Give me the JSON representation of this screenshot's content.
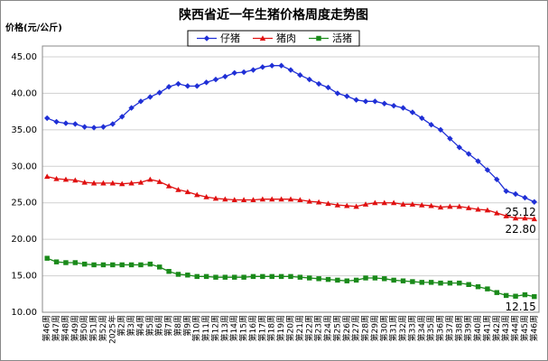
{
  "chart_data": {
    "type": "line",
    "title": "陕西省近一年生猪价格周度走势图",
    "y_label": "价格(元/公斤)",
    "categories": [
      "第46周",
      "第47周",
      "第48周",
      "第49周",
      "第50周",
      "第51周",
      "第52周",
      "2025年",
      "第2周",
      "第3周",
      "第4周",
      "第5周",
      "第6周",
      "第7周",
      "第8周",
      "第9周",
      "第10周",
      "第11周",
      "第12周",
      "第13周",
      "第14周",
      "第15周",
      "第16周",
      "第17周",
      "第18周",
      "第19周",
      "第20周",
      "第21周",
      "第22周",
      "第23周",
      "第24周",
      "第25周",
      "第26周",
      "第27周",
      "第28周",
      "第29周",
      "第30周",
      "第31周",
      "第32周",
      "第33周",
      "第34周",
      "第35周",
      "第36周",
      "第37周",
      "第38周",
      "第39周",
      "第40周",
      "第41周",
      "第42周",
      "第43周",
      "第44周",
      "第45周",
      "第46周"
    ],
    "series": [
      {
        "name": "仔猪",
        "color": "#1f2fd6",
        "marker": "diamond",
        "values": [
          36.6,
          36.1,
          35.9,
          35.8,
          35.4,
          35.3,
          35.4,
          35.8,
          36.8,
          38.0,
          38.9,
          39.5,
          40.1,
          40.9,
          41.3,
          41.0,
          41.0,
          41.5,
          41.9,
          42.3,
          42.8,
          42.9,
          43.2,
          43.6,
          43.8,
          43.8,
          43.2,
          42.5,
          41.9,
          41.3,
          40.8,
          40.0,
          39.6,
          39.1,
          38.9,
          38.9,
          38.6,
          38.3,
          38.0,
          37.4,
          36.6,
          35.7,
          35.0,
          33.8,
          32.6,
          31.7,
          30.7,
          29.5,
          28.2,
          26.6,
          26.2,
          25.7,
          25.12
        ],
        "value_labels": [
          null,
          null,
          null,
          null,
          null,
          null,
          null,
          null,
          null,
          null,
          null,
          null,
          null,
          null,
          null,
          null,
          null,
          null,
          null,
          null,
          null,
          null,
          null,
          null,
          null,
          null,
          null,
          null,
          null,
          null,
          null,
          null,
          null,
          null,
          null,
          null,
          null,
          null,
          null,
          null,
          null,
          null,
          null,
          null,
          null,
          null,
          null,
          null,
          null,
          null,
          null,
          null,
          "25.12"
        ]
      },
      {
        "name": "猪肉",
        "color": "#e01010",
        "marker": "triangle",
        "values": [
          28.6,
          28.3,
          28.2,
          28.1,
          27.8,
          27.7,
          27.7,
          27.7,
          27.6,
          27.7,
          27.8,
          28.2,
          27.9,
          27.3,
          26.8,
          26.5,
          26.1,
          25.8,
          25.6,
          25.5,
          25.4,
          25.4,
          25.4,
          25.5,
          25.5,
          25.5,
          25.5,
          25.4,
          25.2,
          25.1,
          24.9,
          24.7,
          24.6,
          24.5,
          24.8,
          25.0,
          25.0,
          25.0,
          24.8,
          24.8,
          24.7,
          24.6,
          24.4,
          24.5,
          24.5,
          24.3,
          24.1,
          24.0,
          23.6,
          23.2,
          22.9,
          22.9,
          22.8
        ],
        "value_labels": [
          null,
          null,
          null,
          null,
          null,
          null,
          null,
          null,
          null,
          null,
          null,
          null,
          null,
          null,
          null,
          null,
          null,
          null,
          null,
          null,
          null,
          null,
          null,
          null,
          null,
          null,
          null,
          null,
          null,
          null,
          null,
          null,
          null,
          null,
          null,
          null,
          null,
          null,
          null,
          null,
          null,
          null,
          null,
          null,
          null,
          null,
          null,
          null,
          null,
          null,
          null,
          null,
          "22.80"
        ]
      },
      {
        "name": "活猪",
        "color": "#1a8a1a",
        "marker": "square",
        "values": [
          17.4,
          16.9,
          16.8,
          16.8,
          16.6,
          16.5,
          16.5,
          16.5,
          16.5,
          16.5,
          16.5,
          16.6,
          16.2,
          15.6,
          15.2,
          15.1,
          14.9,
          14.9,
          14.8,
          14.8,
          14.8,
          14.8,
          14.9,
          14.9,
          14.9,
          14.9,
          14.9,
          14.8,
          14.7,
          14.6,
          14.5,
          14.4,
          14.3,
          14.4,
          14.7,
          14.7,
          14.6,
          14.4,
          14.3,
          14.2,
          14.1,
          14.1,
          14.0,
          14.0,
          14.0,
          13.8,
          13.5,
          13.2,
          12.7,
          12.3,
          12.2,
          12.4,
          12.15
        ],
        "value_labels": [
          null,
          null,
          null,
          null,
          null,
          null,
          null,
          null,
          null,
          null,
          null,
          null,
          null,
          null,
          null,
          null,
          null,
          null,
          null,
          null,
          null,
          null,
          null,
          null,
          null,
          null,
          null,
          null,
          null,
          null,
          null,
          null,
          null,
          null,
          null,
          null,
          null,
          null,
          null,
          null,
          null,
          null,
          null,
          null,
          null,
          null,
          null,
          null,
          null,
          null,
          null,
          null,
          "12.15"
        ]
      }
    ],
    "ylim": [
      10,
      45
    ],
    "yticks": [
      {
        "value": 10,
        "label": "10.00"
      },
      {
        "value": 15,
        "label": "15.00"
      },
      {
        "value": 20,
        "label": "20.00"
      },
      {
        "value": 25,
        "label": "25.00"
      },
      {
        "value": 30,
        "label": "30.00"
      },
      {
        "value": 35,
        "label": "35.00"
      },
      {
        "value": 40,
        "label": "40.00"
      },
      {
        "value": 45,
        "label": "45.00"
      }
    ],
    "grid": true,
    "legend": "top"
  }
}
